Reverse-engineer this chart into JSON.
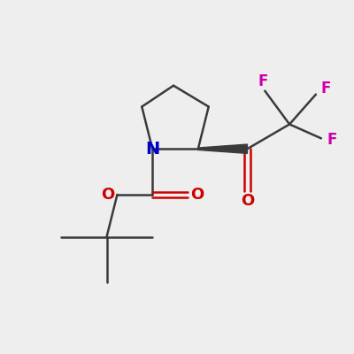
{
  "bg_color": "#eeeeee",
  "bond_color": "#3a3a3a",
  "N_color": "#0000cc",
  "O_color": "#cc0000",
  "F_color": "#cc00aa",
  "line_width": 1.8,
  "font_size": 12,
  "fig_size": [
    4.0,
    4.0
  ],
  "dpi": 100,
  "xlim": [
    0,
    10
  ],
  "ylim": [
    0,
    10
  ]
}
